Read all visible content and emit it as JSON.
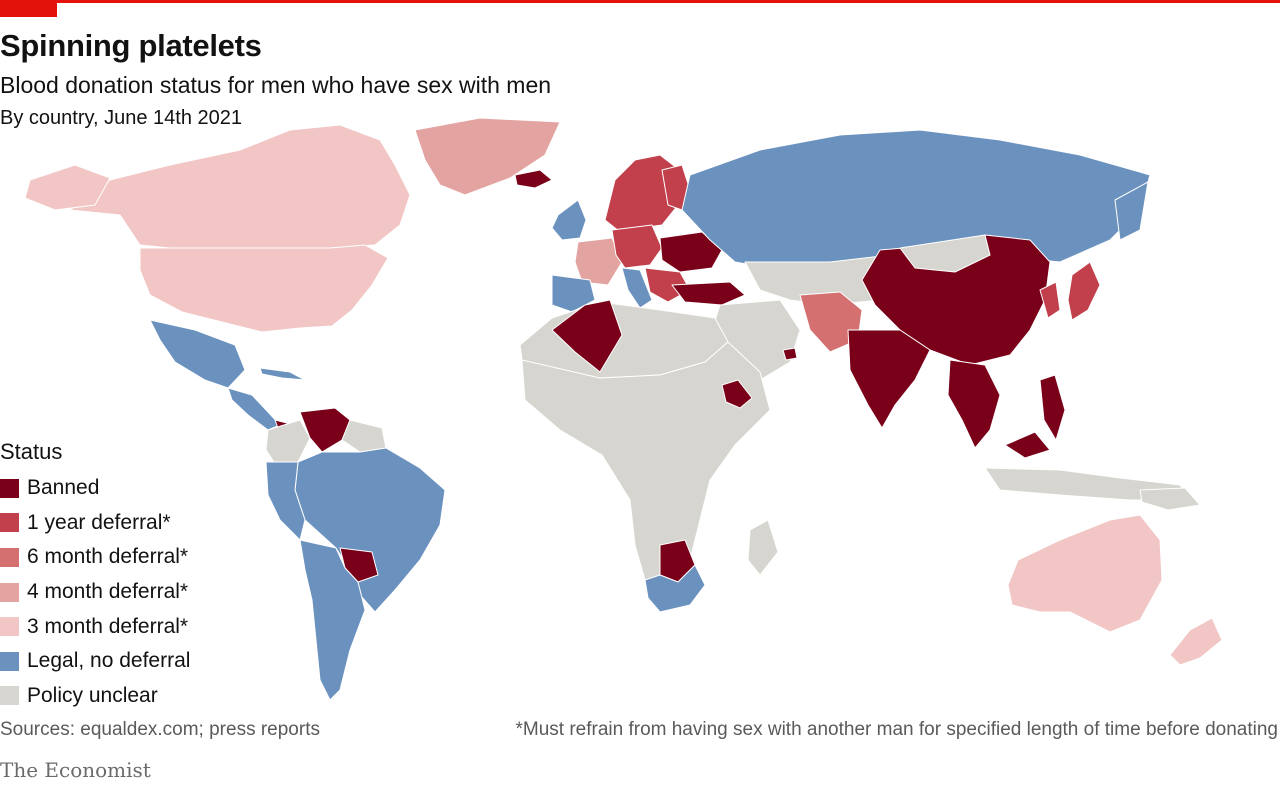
{
  "header": {
    "title": "Spinning platelets",
    "subtitle": "Blood donation status for men who have sex with men",
    "subsubtitle": "By country, June 14th 2021"
  },
  "legend": {
    "title": "Status",
    "items": [
      {
        "label": "Banned",
        "color": "#7a0019"
      },
      {
        "label": "1 year deferral*",
        "color": "#c2404b"
      },
      {
        "label": "6 month deferral*",
        "color": "#d4706f"
      },
      {
        "label": "4 month deferral*",
        "color": "#e3a3a0"
      },
      {
        "label": "3 month deferral*",
        "color": "#f1c6c4"
      },
      {
        "label": "Legal, no deferral",
        "color": "#6b92bf"
      },
      {
        "label": "Policy unclear",
        "color": "#d6d5cf"
      }
    ]
  },
  "footer": {
    "sources": "Sources: equaldex.com; press reports",
    "footnote": "*Must refrain from having sex with another man for specified length of time before donating",
    "brand": "The Economist"
  },
  "colors": {
    "accent": "#e3120b",
    "banned": "#7a0019",
    "one_year": "#c2404b",
    "six_month": "#d4706f",
    "four_month": "#e3a3a0",
    "three_month": "#f1c6c4",
    "legal": "#6b92bf",
    "unclear": "#d6d5cf"
  }
}
